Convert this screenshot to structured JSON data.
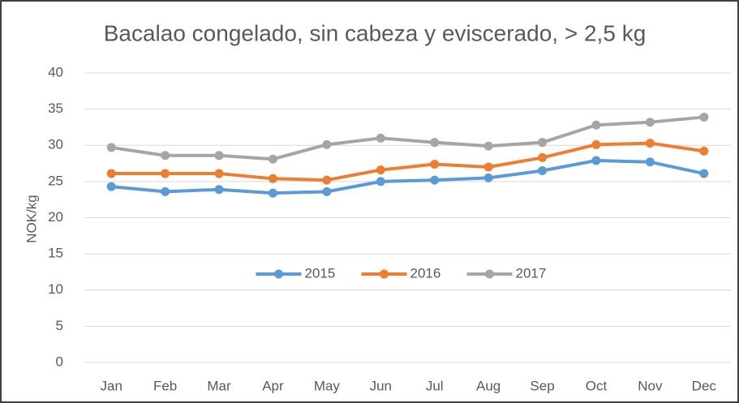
{
  "chart_data": {
    "type": "line",
    "title": "Bacalao congelado, sin cabeza y eviscerado, > 2,5 kg",
    "y_label": "NOK/kg",
    "categories": [
      "Jan",
      "Feb",
      "Mar",
      "Apr",
      "May",
      "Jun",
      "Jul",
      "Aug",
      "Sep",
      "Oct",
      "Nov",
      "Dec"
    ],
    "series": [
      {
        "name": "2015",
        "color": "#5b9bd5",
        "values": [
          24.3,
          23.6,
          23.9,
          23.4,
          23.6,
          25.0,
          25.2,
          25.5,
          26.5,
          27.9,
          27.7,
          26.1
        ]
      },
      {
        "name": "2016",
        "color": "#ed7d31",
        "values": [
          26.1,
          26.1,
          26.1,
          25.4,
          25.2,
          26.6,
          27.4,
          27.0,
          28.3,
          30.1,
          30.3,
          29.2
        ]
      },
      {
        "name": "2017",
        "color": "#a5a5a5",
        "values": [
          29.7,
          28.6,
          28.6,
          28.1,
          30.1,
          31.0,
          30.4,
          29.9,
          30.4,
          32.8,
          33.2,
          33.9
        ]
      }
    ],
    "ylim": [
      0,
      40
    ],
    "yticks": [
      0,
      5,
      10,
      15,
      20,
      25,
      30,
      35,
      40
    ],
    "grid": true,
    "legend": "center"
  }
}
